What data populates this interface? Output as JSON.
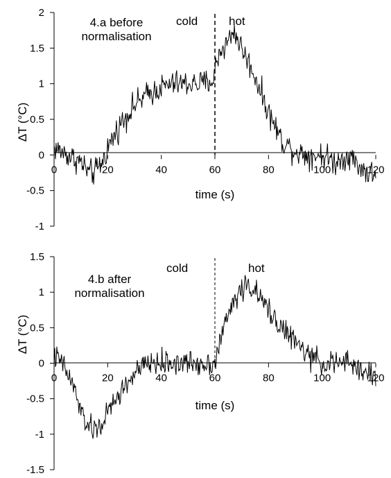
{
  "chart_data": [
    {
      "type": "line",
      "title": "4.a before\nnormalisation",
      "xlabel": "time (s)",
      "ylabel": "ΔT (°C)",
      "xlim": [
        0,
        120
      ],
      "ylim": [
        -1,
        2
      ],
      "xticks": [
        0,
        20,
        40,
        60,
        80,
        100,
        120
      ],
      "yticks": [
        -1,
        -0.5,
        0,
        0.5,
        1,
        1.5,
        2
      ],
      "xtick_labels": [
        "0",
        "20",
        "40",
        "60",
        "80",
        "100",
        "120"
      ],
      "ytick_labels": [
        "-1",
        "-0.5",
        "0",
        "0.5",
        "1",
        "1.5",
        "2"
      ],
      "divider_x": 60,
      "annotations": [
        "cold",
        "hot"
      ],
      "series": [
        {
          "x": [
            0,
            5,
            10,
            13,
            15,
            18,
            20,
            25,
            30,
            35,
            40,
            45,
            50,
            55,
            59.5,
            60.5,
            62,
            65,
            67,
            70,
            75,
            80,
            85,
            90,
            95,
            100,
            105,
            110,
            115,
            120
          ],
          "y": [
            0.1,
            0.0,
            -0.1,
            -0.25,
            -0.25,
            -0.1,
            0.1,
            0.45,
            0.7,
            0.85,
            0.95,
            1.0,
            1.0,
            1.0,
            1.05,
            1.3,
            1.45,
            1.6,
            1.75,
            1.5,
            1.1,
            0.6,
            0.2,
            0.05,
            0.0,
            0.0,
            -0.1,
            0.0,
            -0.2,
            -0.3
          ],
          "noise": 0.14
        }
      ]
    },
    {
      "type": "line",
      "title": "4.b after\nnormalisation",
      "xlabel": "time (s)",
      "ylabel": "ΔT (°C)",
      "xlim": [
        0,
        120
      ],
      "ylim": [
        -1.5,
        1.5
      ],
      "xticks": [
        0,
        20,
        40,
        60,
        80,
        100,
        120
      ],
      "yticks": [
        -1.5,
        -1,
        -0.5,
        0,
        0.5,
        1,
        1.5
      ],
      "xtick_labels": [
        "0",
        "20",
        "40",
        "60",
        "80",
        "100",
        "120"
      ],
      "ytick_labels": [
        "-1.5",
        "-1",
        "-0.5",
        "0",
        "0.5",
        "1",
        "1.5"
      ],
      "divider_x": 60,
      "annotations": [
        "cold",
        "hot"
      ],
      "series": [
        {
          "x": [
            0,
            3,
            5,
            8,
            10,
            13,
            15,
            18,
            20,
            25,
            30,
            35,
            40,
            45,
            50,
            55,
            59.5,
            60.5,
            63,
            66,
            70,
            73,
            75,
            80,
            85,
            90,
            95,
            100,
            110,
            120
          ],
          "y": [
            0.1,
            0.0,
            -0.15,
            -0.4,
            -0.7,
            -0.9,
            -0.95,
            -0.85,
            -0.7,
            -0.4,
            -0.15,
            0.0,
            0.0,
            0.0,
            0.0,
            0.0,
            0.0,
            0.1,
            0.45,
            0.8,
            1.05,
            1.1,
            1.0,
            0.75,
            0.5,
            0.3,
            0.1,
            0.0,
            0.0,
            -0.2
          ],
          "noise": 0.13
        }
      ]
    }
  ]
}
